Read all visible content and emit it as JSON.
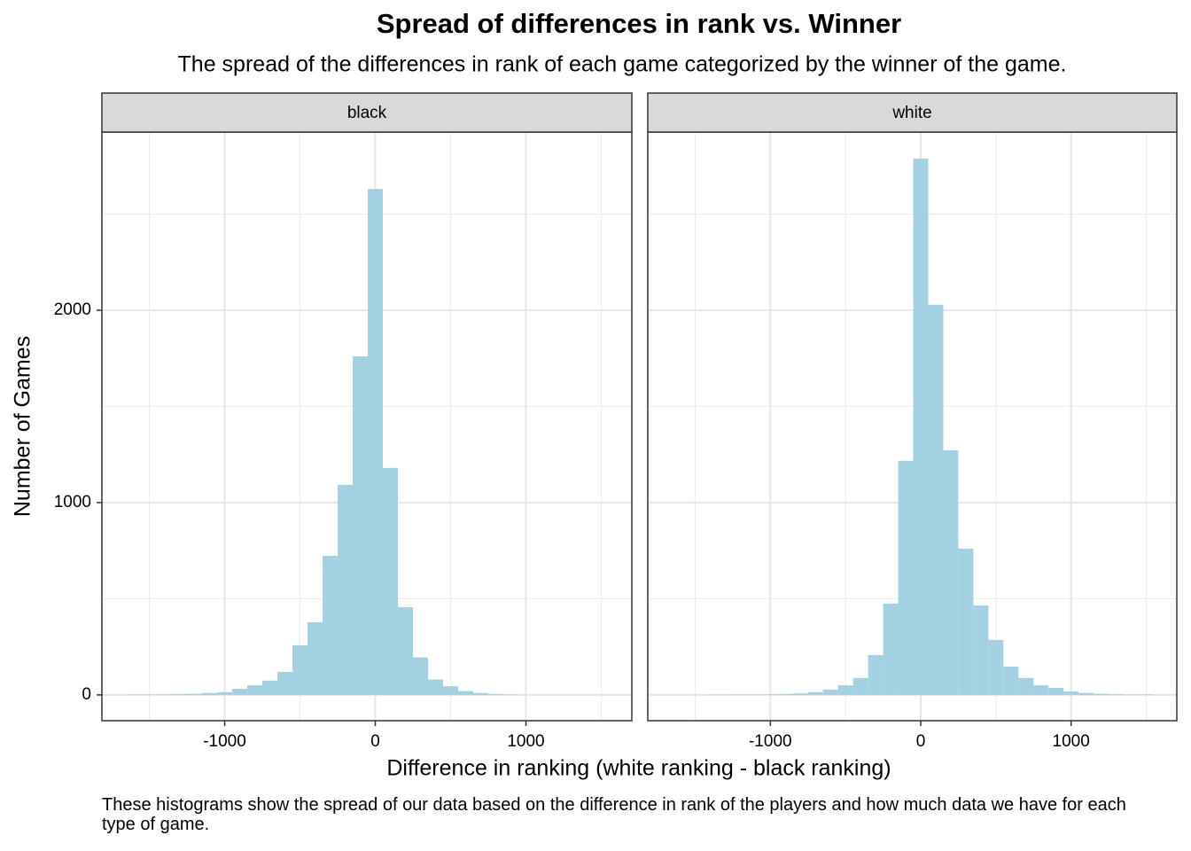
{
  "title": "Spread of differences in rank vs. Winner",
  "subtitle": "The spread of the differences in rank of each game categorized by the winner of the game.",
  "x_label": "Difference in ranking (white ranking - black ranking)",
  "y_label": "Number of Games",
  "caption": "These histograms show the spread of our data based on the difference in rank of the players and how much data we have for each type of game.",
  "chart_data": [
    {
      "type": "histogram",
      "facet": "black",
      "color": "#a3d1e1",
      "bins": [
        -1650,
        -1550,
        -1450,
        -1350,
        -1250,
        -1150,
        -1050,
        -950,
        -850,
        -750,
        -650,
        -550,
        -450,
        -350,
        -250,
        -150,
        -50,
        50,
        150,
        250,
        350,
        450,
        550,
        650,
        750,
        850,
        950
      ],
      "values": [
        2,
        2,
        3,
        5,
        6,
        10,
        14,
        32,
        50,
        74,
        120,
        258,
        378,
        723,
        1092,
        1760,
        2630,
        1180,
        456,
        195,
        80,
        45,
        20,
        10,
        5,
        2
      ],
      "xlim": [
        -1815,
        1703
      ],
      "ylim": [
        -134,
        2926
      ],
      "xticks": [
        -1000,
        0,
        1000
      ],
      "yticks": [
        0,
        1000,
        2000
      ],
      "grid": true
    },
    {
      "type": "histogram",
      "facet": "white",
      "color": "#a3d1e1",
      "bins": [
        -1450,
        -1350,
        -1250,
        -1150,
        -1050,
        -950,
        -850,
        -750,
        -650,
        -550,
        -450,
        -350,
        -250,
        -150,
        -50,
        50,
        150,
        250,
        350,
        450,
        550,
        650,
        750,
        850,
        950,
        1050,
        1150,
        1250,
        1350,
        1450,
        1550
      ],
      "values": [
        1,
        1,
        2,
        2,
        3,
        5,
        8,
        14,
        28,
        50,
        88,
        207,
        475,
        1217,
        2788,
        2028,
        1272,
        760,
        465,
        286,
        147,
        88,
        50,
        37,
        18,
        10,
        6,
        4,
        2,
        3
      ],
      "xlim": [
        -1815,
        1703
      ],
      "ylim": [
        -134,
        2926
      ],
      "xticks": [
        -1000,
        0,
        1000
      ],
      "yticks": [
        0,
        1000,
        2000
      ],
      "grid": true
    }
  ]
}
